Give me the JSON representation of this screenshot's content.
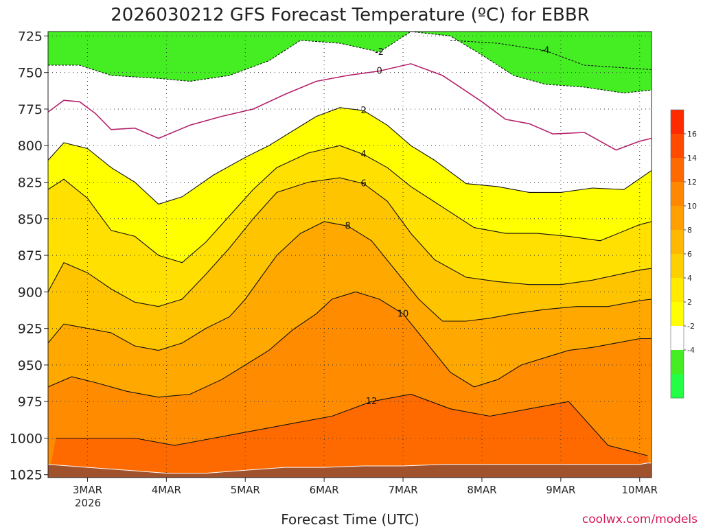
{
  "chart_data": {
    "type": "heatmap",
    "title": "2026030212 GFS Forecast Temperature (ºC) for EBBR",
    "xlabel": "Forecast Time (UTC)",
    "ylabel": "",
    "credit": "coolwx.com/models",
    "y_axis": {
      "quantity": "pressure (hPa)",
      "ticks": [
        725,
        750,
        775,
        800,
        825,
        850,
        875,
        900,
        925,
        950,
        975,
        1000,
        1025
      ],
      "tick_labels": [
        "725",
        "750",
        "775",
        "800",
        "825",
        "850",
        "875",
        "900",
        "925",
        "950",
        "975",
        "1000",
        "1025"
      ],
      "range": [
        722,
        1027
      ],
      "inverted": true
    },
    "x_axis": {
      "quantity": "forecast time (days since start of 2 MAR 2026)",
      "ticks": [
        1,
        2,
        3,
        4,
        5,
        6,
        7,
        8
      ],
      "tick_labels": [
        "3MAR",
        "4MAR",
        "5MAR",
        "6MAR",
        "7MAR",
        "8MAR",
        "9MAR",
        "10MAR"
      ],
      "year_label": "2026",
      "range": [
        0.5,
        8.15
      ]
    },
    "grid": true,
    "colorbar": {
      "position": "right",
      "labels": [
        "16",
        "14",
        "12",
        "10",
        "8",
        "6",
        "4",
        "2",
        "-2",
        "-4"
      ],
      "colors": [
        "#ff2a00",
        "#ff4a00",
        "#ff6a00",
        "#ff8800",
        "#ffa000",
        "#ffb800",
        "#ffd000",
        "#ffea00",
        "#ffff00",
        "#ffffff",
        "#44ee22",
        "#22ff44"
      ]
    },
    "contour_series": [
      {
        "name": "-4",
        "style": "dashed",
        "x": [
          5.6,
          6.2,
          6.8,
          7.3,
          8.15
        ],
        "y": [
          728,
          730,
          735,
          745,
          748
        ]
      },
      {
        "name": "-2",
        "style": "dashed",
        "x": [
          0.5,
          0.9,
          1.3,
          1.9,
          2.3,
          2.8,
          3.3,
          3.7,
          4.2,
          4.7,
          5.1,
          5.6,
          6.0,
          6.4,
          6.8,
          7.3,
          7.8,
          8.15
        ],
        "y": [
          745,
          745,
          752,
          754,
          756,
          752,
          742,
          728,
          730,
          736,
          722,
          725,
          738,
          752,
          758,
          760,
          764,
          762
        ]
      },
      {
        "name": "0",
        "style": "solid",
        "x": [
          0.5,
          0.7,
          0.9,
          1.1,
          1.3,
          1.6,
          1.9,
          2.3,
          2.7,
          3.1,
          3.5,
          3.9,
          4.3,
          4.7,
          5.1,
          5.5,
          6.0,
          6.3,
          6.6,
          6.9,
          7.3,
          7.7,
          8.0,
          8.15
        ],
        "y": [
          777,
          769,
          770,
          778,
          789,
          788,
          795,
          786,
          780,
          775,
          765,
          756,
          752,
          749,
          744,
          752,
          770,
          782,
          785,
          792,
          791,
          803,
          797,
          795
        ]
      },
      {
        "name": "2",
        "style": "solid",
        "x": [
          0.5,
          0.7,
          1.0,
          1.3,
          1.6,
          1.9,
          2.2,
          2.6,
          3.0,
          3.3,
          3.6,
          3.9,
          4.2,
          4.5,
          4.8,
          5.1,
          5.4,
          5.8,
          6.2,
          6.6,
          7.0,
          7.4,
          7.8,
          8.15
        ],
        "y": [
          810,
          798,
          802,
          815,
          825,
          840,
          835,
          820,
          808,
          800,
          790,
          780,
          774,
          776,
          786,
          800,
          810,
          826,
          828,
          832,
          832,
          829,
          830,
          817
        ]
      },
      {
        "name": "4",
        "style": "solid",
        "x": [
          0.5,
          0.7,
          1.0,
          1.3,
          1.6,
          1.9,
          2.2,
          2.5,
          2.8,
          3.1,
          3.4,
          3.8,
          4.2,
          4.5,
          4.8,
          5.1,
          5.5,
          5.9,
          6.3,
          6.7,
          7.1,
          7.5,
          8.0,
          8.15
        ],
        "y": [
          830,
          823,
          836,
          858,
          862,
          875,
          880,
          866,
          848,
          830,
          815,
          805,
          800,
          806,
          815,
          828,
          842,
          856,
          860,
          860,
          862,
          865,
          854,
          852
        ]
      },
      {
        "name": "6",
        "style": "solid",
        "x": [
          0.5,
          0.7,
          1.0,
          1.3,
          1.6,
          1.9,
          2.2,
          2.5,
          2.8,
          3.1,
          3.4,
          3.8,
          4.2,
          4.5,
          4.8,
          5.1,
          5.4,
          5.8,
          6.2,
          6.6,
          7.0,
          7.4,
          8.0,
          8.15
        ],
        "y": [
          900,
          880,
          887,
          898,
          907,
          910,
          905,
          888,
          870,
          850,
          832,
          825,
          822,
          826,
          838,
          860,
          878,
          890,
          893,
          895,
          895,
          892,
          885,
          884
        ]
      },
      {
        "name": "8",
        "style": "solid",
        "x": [
          0.5,
          0.7,
          1.0,
          1.3,
          1.6,
          1.9,
          2.2,
          2.5,
          2.8,
          3.0,
          3.2,
          3.4,
          3.7,
          4.0,
          4.3,
          4.6,
          4.9,
          5.2,
          5.5,
          5.8,
          6.1,
          6.4,
          6.8,
          7.2,
          7.6,
          8.0,
          8.15
        ],
        "y": [
          935,
          922,
          925,
          928,
          937,
          940,
          935,
          925,
          917,
          905,
          890,
          875,
          860,
          852,
          855,
          865,
          885,
          905,
          920,
          920,
          918,
          915,
          912,
          910,
          910,
          906,
          905
        ]
      },
      {
        "name": "10",
        "style": "solid",
        "x": [
          0.5,
          0.8,
          1.1,
          1.5,
          1.9,
          2.3,
          2.7,
          3.0,
          3.3,
          3.6,
          3.9,
          4.1,
          4.4,
          4.7,
          5.0,
          5.3,
          5.6,
          5.9,
          6.2,
          6.5,
          6.8,
          7.1,
          7.4,
          7.7,
          8.0,
          8.15
        ],
        "y": [
          965,
          958,
          962,
          968,
          972,
          970,
          960,
          950,
          940,
          926,
          915,
          905,
          900,
          905,
          915,
          935,
          955,
          965,
          960,
          950,
          945,
          940,
          938,
          935,
          932,
          932
        ]
      },
      {
        "name": "12",
        "style": "solid",
        "x": [
          0.6,
          1.1,
          1.6,
          2.1,
          2.6,
          3.1,
          3.6,
          4.1,
          4.6,
          5.1,
          5.6,
          6.1,
          6.6,
          7.1,
          7.6,
          8.1
        ],
        "y": [
          1000,
          1000,
          1000,
          1005,
          1000,
          995,
          990,
          985,
          975,
          970,
          980,
          985,
          980,
          975,
          1005,
          1012
        ]
      }
    ],
    "surface_pressure_hPa": [
      1018,
      1020,
      1022,
      1024,
      1024,
      1022,
      1020,
      1020,
      1019,
      1019,
      1018,
      1018,
      1018,
      1018,
      1018,
      1018,
      1017,
      1017
    ],
    "surface_pressure_x": [
      0.5,
      1.0,
      1.5,
      2.0,
      2.5,
      3.0,
      3.5,
      4.0,
      4.5,
      5.0,
      5.5,
      6.0,
      6.5,
      7.0,
      7.5,
      8.0,
      8.1,
      8.15
    ]
  }
}
